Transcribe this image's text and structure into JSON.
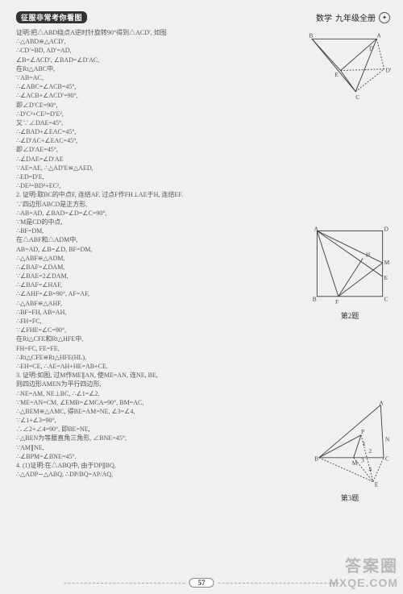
{
  "header": {
    "left": "征服非常考你看图",
    "right_subject": "数学",
    "right_grade": "九年级全册"
  },
  "lines": [
    "证明:把△ABD绕点A逆时针旋转90°得到△ACD′, 如图",
    "∴△ABD≌△ACD′,",
    "∴CD′=BD, AD′=AD,",
    "∠B=∠ACD′, ∠BAD=∠D′AC,",
    "在Rt△ABC中,",
    "∵AB=AC,",
    "∴∠ABC=∠ACB=45°,",
    "∴∠ACB+∠ACD′=90°,",
    "即∠D′CE=90°,",
    "∴D′C²+CE²=D′E²,",
    "又∵∠DAE=45°,",
    "∴∠BAD+∠EAC=45°,",
    "∴∠D′AC+∠EAC=45°,",
    "即∠D′AE=45°,",
    "∴∠DAE=∠D′AE",
    "∵AE=AE, ∴△AD′E≌△AED,",
    "∴ED=D′E,",
    "∴DE²=BD²+EC²,",
    "2. 证明:取BC的中点F, 连结AF, 过点F作FH⊥AE于H, 连结EF.",
    "∵四边形ABCD是正方形,",
    "∴AB=AD, ∠BAD=∠D=∠C=90°,",
    "∵M是CD的中点,",
    "∴BF=DM,",
    "在△ABF和△ADM中,",
    "AB=AD, ∠B=∠D, BF=DM,",
    "∴△ABF≌△ADM,",
    "∴∠BAF=∠DAM,",
    "∵∠BAE=2∠DAM,",
    "∴∠BAF=∠HAF,",
    "∴∠AHF=∠B=90°, AF=AF,",
    "∴△ABF≌△AHF,",
    "∴BF=FH, AB=AH,",
    "∴FH=FC,",
    "∵∠FHE=∠C=90°,",
    "在Rt△CFE和Rt△HFE中,",
    "FH=FC, FE=FE,",
    "∴Rt△CFE≌Rt△HFE(HL),",
    "∴EH=CE, ∴AE=AH+HE=AB+CE.",
    "3. 证明:如图, 过M作ME∥AN, 使ME=AN, 连NE, BE,",
    "则四边形AMEN为平行四边形,",
    "∴NE=AM, NE⊥BC, ∴∠1=∠2,",
    "∵ME=AN=CM, ∠EMB=∠MCA=90°, BM=AC,",
    "∴△BEM≌△AMC, 得BE=AM=NE, ∠3=∠4,",
    "∵∠1+∠3=90°,",
    "∴∠2+∠4=90°, 即BE=NE,",
    "∴△BEN为等腰直角三角形, ∠BNE=45°,",
    "∵AM∥NE,",
    "∴∠BPM=∠BNE=45°.",
    "4. (1)证明:在△ABQ中, 由于DP∥BQ,",
    "∴△ADP∽△ABQ, ∴DP/BQ=AP/AQ,"
  ],
  "figures": {
    "f2_caption": "第2题",
    "f3_caption": "第3题"
  },
  "pagenum": "57",
  "watermark": {
    "top": "答案圈",
    "bot": "MXQE.COM"
  }
}
